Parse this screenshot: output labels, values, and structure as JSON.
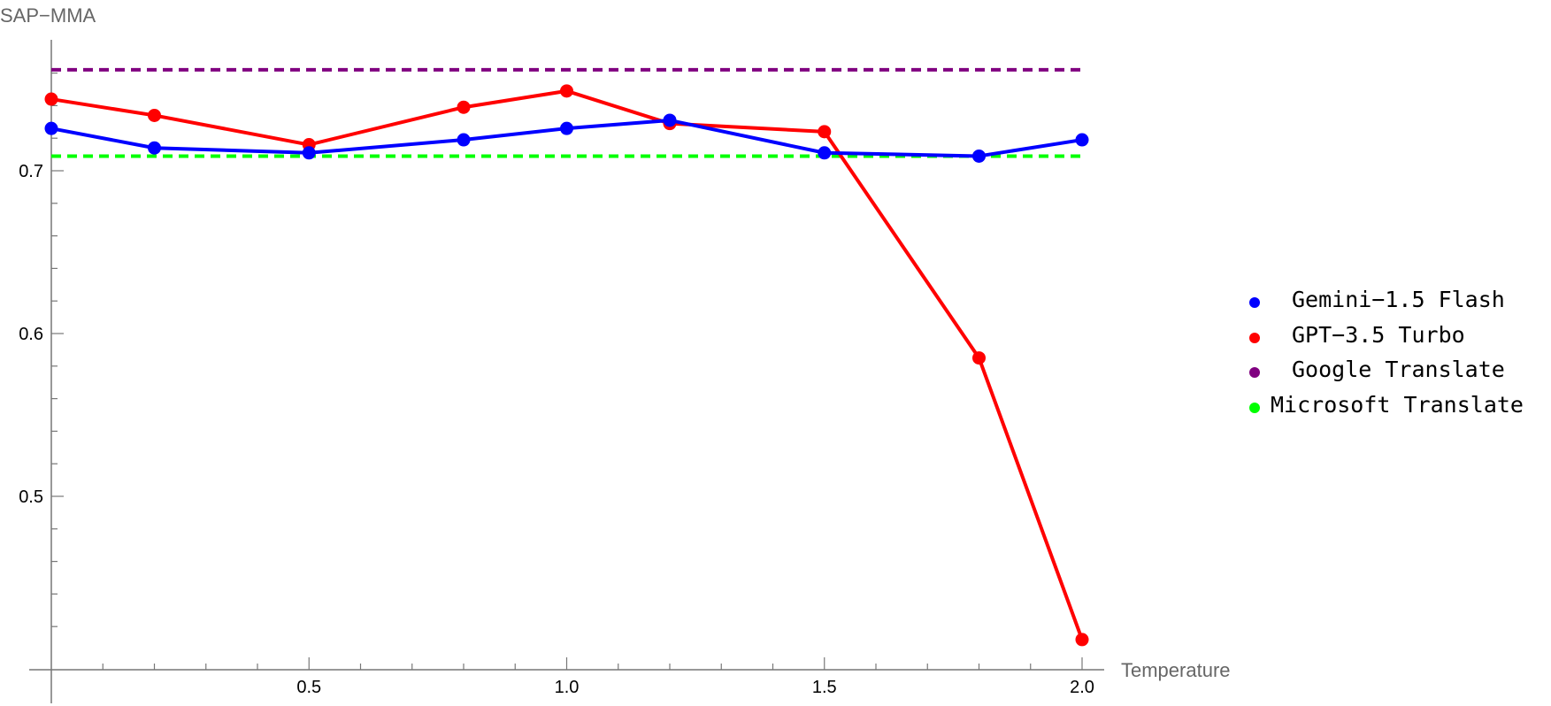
{
  "chart_data": {
    "type": "line",
    "title": "",
    "xlabel": "Temperature",
    "ylabel": "SAP−MMA",
    "xlim": [
      0.0,
      2.0
    ],
    "ylim": [
      0.4,
      0.78
    ],
    "x_ticks": [
      0.5,
      1.0,
      1.5,
      2.0
    ],
    "x_tick_labels": [
      "0.5",
      "1.0",
      "1.5",
      "2.0"
    ],
    "y_ticks": [
      0.5,
      0.6,
      0.7
    ],
    "y_tick_labels": [
      "0.5",
      "0.6",
      "0.7"
    ],
    "grid": false,
    "legend_position": "right",
    "x": [
      0.0,
      0.2,
      0.5,
      0.8,
      1.0,
      1.2,
      1.5,
      1.8,
      2.0
    ],
    "series": [
      {
        "name": "Gemini−1.5 Flash",
        "color": "#0000ff",
        "style": "solid",
        "values": [
          0.726,
          0.714,
          0.711,
          0.719,
          0.726,
          0.731,
          0.711,
          0.709,
          0.719
        ]
      },
      {
        "name": "GPT−3.5 Turbo",
        "color": "#ff0000",
        "style": "solid",
        "values": [
          0.744,
          0.734,
          0.716,
          0.739,
          0.749,
          0.729,
          0.724,
          0.585,
          0.412
        ]
      },
      {
        "name": "Google Translate",
        "color": "#800080",
        "style": "dashed",
        "constant": 0.762
      },
      {
        "name": "Microsoft Translate",
        "color": "#00ff00",
        "style": "dashed",
        "constant": 0.709
      }
    ]
  }
}
